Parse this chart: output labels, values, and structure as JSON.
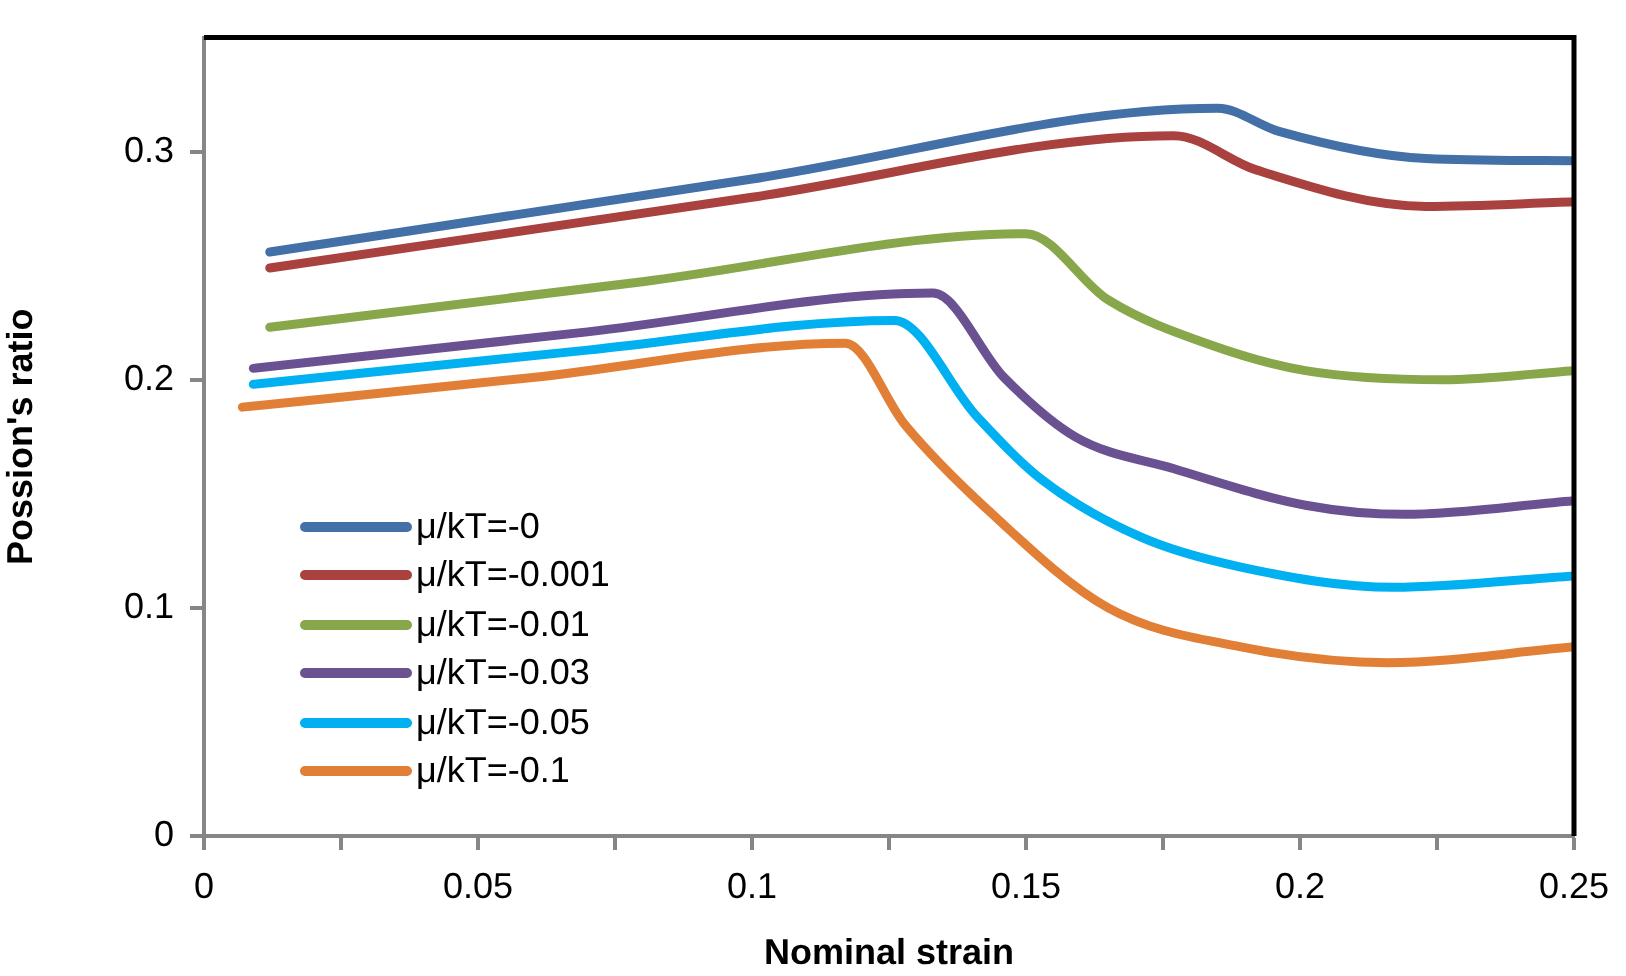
{
  "chart_data": {
    "type": "line",
    "xlabel": "Nominal strain",
    "ylabel": "Possion's ratio",
    "xlim": [
      0,
      0.25
    ],
    "ylim": [
      0,
      0.35
    ],
    "xticks": [
      0,
      {
        "value": 0.025,
        "label": null
      },
      0.05,
      {
        "value": 0.075,
        "label": null
      },
      0.1,
      {
        "value": 0.125,
        "label": null
      },
      0.15,
      {
        "value": 0.175,
        "label": null
      },
      0.2,
      {
        "value": 0.225,
        "label": null
      },
      0.25
    ],
    "yticks": [
      0,
      0.1,
      0.2,
      0.3
    ],
    "grid": false,
    "legend": "bottom left",
    "marker": "none",
    "line_style": "solid",
    "series": [
      {
        "name": "μ/kT=-0",
        "color": "#4470a8",
        "x": [
          0.012,
          0.1,
          0.185,
          0.196,
          0.223,
          0.25
        ],
        "values": [
          0.256,
          0.288,
          0.319,
          0.309,
          0.297,
          0.296
        ]
      },
      {
        "name": "μ/kT=-0.001",
        "color": "#a9413f",
        "x": [
          0.012,
          0.1,
          0.177,
          0.192,
          0.223,
          0.25
        ],
        "values": [
          0.249,
          0.28,
          0.307,
          0.292,
          0.276,
          0.278
        ]
      },
      {
        "name": "μ/kT=-0.01",
        "color": "#87a74a",
        "x": [
          0.012,
          0.08,
          0.15,
          0.165,
          0.184,
          0.201,
          0.226,
          0.25
        ],
        "values": [
          0.223,
          0.243,
          0.264,
          0.235,
          0.215,
          0.204,
          0.2,
          0.204
        ]
      },
      {
        "name": "μ/kT=-0.03",
        "color": "#6a5192",
        "x": [
          0.009,
          0.07,
          0.133,
          0.146,
          0.159,
          0.177,
          0.201,
          0.219,
          0.25
        ],
        "values": [
          0.205,
          0.221,
          0.238,
          0.201,
          0.175,
          0.161,
          0.145,
          0.141,
          0.147
        ]
      },
      {
        "name": "μ/kT=-0.05",
        "color": "#00b0f0",
        "x": [
          0.009,
          0.07,
          0.126,
          0.141,
          0.153,
          0.171,
          0.189,
          0.217,
          0.25
        ],
        "values": [
          0.198,
          0.213,
          0.226,
          0.184,
          0.156,
          0.131,
          0.118,
          0.109,
          0.114
        ]
      },
      {
        "name": "μ/kT=-0.1",
        "color": "#e07f35",
        "x": [
          0.007,
          0.06,
          0.117,
          0.128,
          0.143,
          0.165,
          0.189,
          0.216,
          0.25
        ],
        "values": [
          0.188,
          0.201,
          0.216,
          0.18,
          0.143,
          0.1,
          0.083,
          0.076,
          0.083
        ]
      }
    ]
  }
}
